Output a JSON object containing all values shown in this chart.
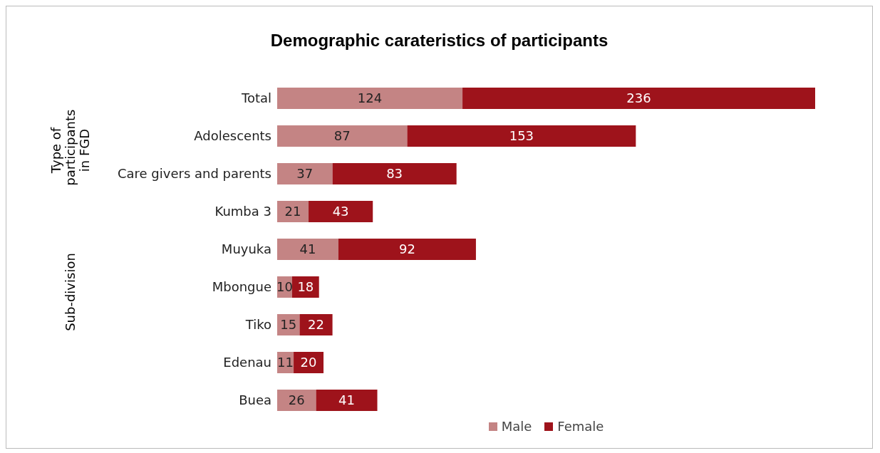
{
  "chart_data": {
    "type": "bar",
    "orientation": "horizontal",
    "stacked": true,
    "title": "Demographic carateristics of participants",
    "categories": [
      "Total",
      "Adolescents",
      "Care givers and parents",
      "Kumba 3",
      "Muyuka",
      "Mbongue",
      "Tiko",
      "Edenau",
      "Buea"
    ],
    "series": [
      {
        "name": "Male",
        "color": "#c48484",
        "values": [
          124,
          87,
          37,
          21,
          41,
          10,
          15,
          11,
          26
        ]
      },
      {
        "name": "Female",
        "color": "#9e131b",
        "values": [
          236,
          153,
          83,
          43,
          92,
          18,
          22,
          20,
          41
        ]
      }
    ],
    "annotations": [
      "Type of participants in FGD",
      "Sub-division"
    ],
    "data_labels": true,
    "legend": "bottom"
  }
}
